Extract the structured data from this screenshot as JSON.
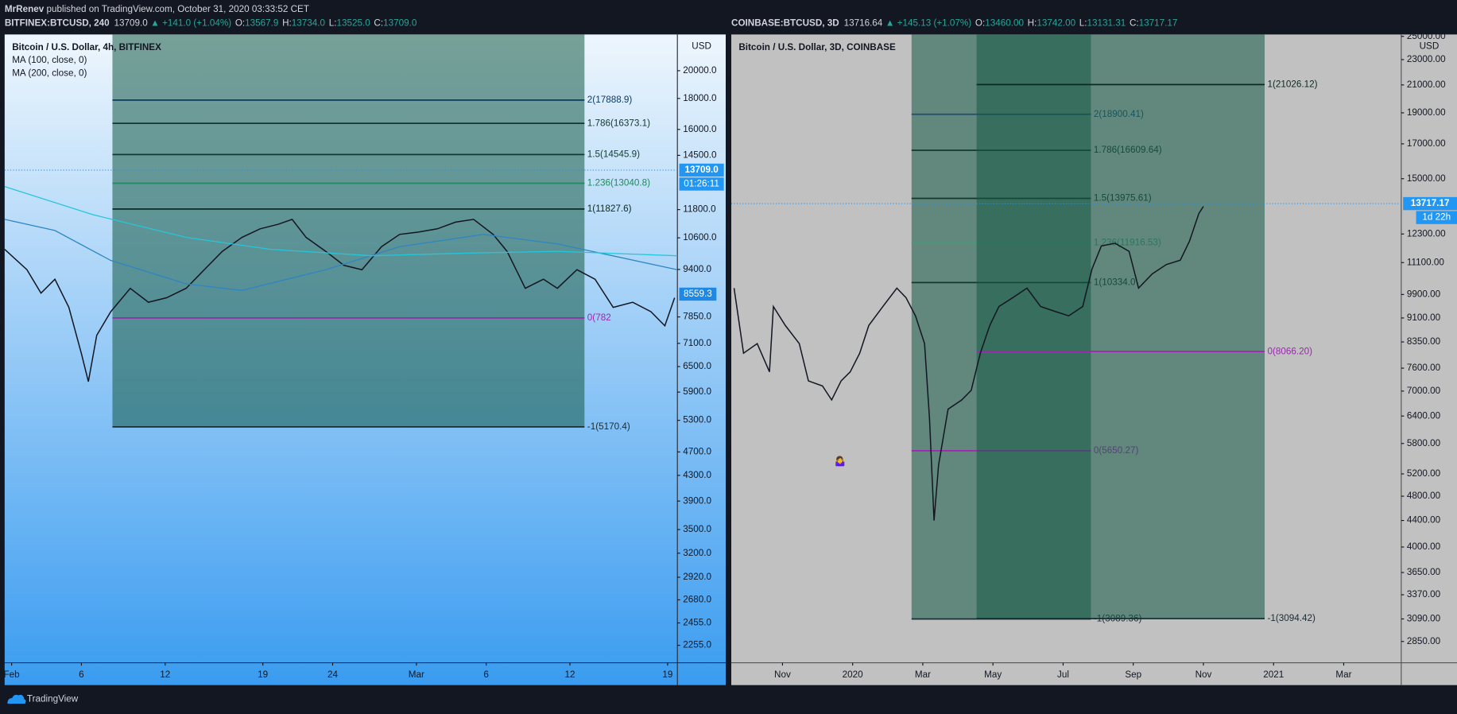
{
  "header": {
    "author": "MrRenev",
    "published": "published on TradingView.com, October 31, 2020 03:33:52 CET",
    "panels": [
      {
        "symbol": "BITFINEX:BTCUSD, 240",
        "price": "13709.0",
        "change": "▲ +141.0 (+1.04%)",
        "ohlc": [
          [
            "O:",
            "13567.9"
          ],
          [
            "H:",
            "13734.0"
          ],
          [
            "L:",
            "13525.0"
          ],
          [
            "C:",
            "13709.0"
          ]
        ]
      },
      {
        "symbol": "COINBASE:BTCUSD, 3D",
        "price": "13716.64",
        "change": "▲ +145.13 (+1.07%)",
        "ohlc": [
          [
            "O:",
            "13460.00"
          ],
          [
            "H:",
            "13742.00"
          ],
          [
            "L:",
            "13131.31"
          ],
          [
            "C:",
            "13717.17"
          ]
        ]
      }
    ]
  },
  "chart_data": [
    {
      "type": "line",
      "log_scale": true,
      "grid": false,
      "currency": "USD",
      "xlim": [
        31.5,
        79.7
      ],
      "xticks": [
        {
          "value": 32,
          "label": "Feb"
        },
        {
          "value": 37,
          "label": "6"
        },
        {
          "value": 43,
          "label": "12"
        },
        {
          "value": 50,
          "label": "19"
        },
        {
          "value": 55,
          "label": "24"
        },
        {
          "value": 61,
          "label": "Mar"
        },
        {
          "value": 66,
          "label": "6"
        },
        {
          "value": 72,
          "label": "12"
        },
        {
          "value": 79,
          "label": "19"
        }
      ],
      "ylim": [
        2110,
        22950
      ],
      "yticks": [
        {
          "value": 20000,
          "label": "20000.0"
        },
        {
          "value": 18000,
          "label": "18000.0"
        },
        {
          "value": 16000,
          "label": "16000.0"
        },
        {
          "value": 14500,
          "label": "14500.0"
        },
        {
          "value": 11800,
          "label": "11800.0"
        },
        {
          "value": 10600,
          "label": "10600.0"
        },
        {
          "value": 9400,
          "label": "9400.0"
        },
        {
          "value": 7850,
          "label": "7850.0"
        },
        {
          "value": 7100,
          "label": "7100.0"
        },
        {
          "value": 6500,
          "label": "6500.0"
        },
        {
          "value": 5900,
          "label": "5900.0"
        },
        {
          "value": 5300,
          "label": "5300.0"
        },
        {
          "value": 4700,
          "label": "4700.0"
        },
        {
          "value": 4300,
          "label": "4300.0"
        },
        {
          "value": 3900,
          "label": "3900.0"
        },
        {
          "value": 3500,
          "label": "3500.0"
        },
        {
          "value": 3200,
          "label": "3200.0"
        },
        {
          "value": 2920,
          "label": "2920.0"
        },
        {
          "value": 2680,
          "label": "2680.0"
        },
        {
          "value": 2455,
          "label": "2455.0"
        },
        {
          "value": 2255,
          "label": "2255.0"
        }
      ],
      "series": [
        {
          "name": "Bitcoin / U.S. Dollar, 4h, BITFINEX",
          "color": "#131722",
          "x": [
            31.5,
            33.1,
            34.1,
            35.1,
            36.1,
            37,
            37.5,
            38.1,
            39.1,
            40.5,
            41.8,
            43.1,
            44.5,
            45.8,
            47.1,
            48.5,
            49.8,
            51.1,
            52.1,
            53.1,
            54.5,
            55.8,
            57.1,
            58.5,
            59.8,
            61.1,
            62.5,
            63.8,
            65.1,
            66.5,
            67.5,
            68.8,
            70.1,
            71.1,
            72.5,
            73.8,
            75.1,
            76.5,
            77.8,
            78.8,
            79.5
          ],
          "values": [
            10150,
            9390,
            8590,
            9060,
            8140,
            6830,
            6140,
            7320,
            8010,
            8750,
            8300,
            8440,
            8750,
            9390,
            10070,
            10620,
            10970,
            11160,
            11370,
            10620,
            10070,
            9550,
            9390,
            10250,
            10740,
            10830,
            10970,
            11250,
            11370,
            10740,
            10070,
            8750,
            9060,
            8750,
            9390,
            9060,
            8140,
            8300,
            8010,
            7590,
            8440
          ]
        },
        {
          "name": "MA (100, close, 0)",
          "color": "#2e86c1",
          "x": [
            31.5,
            35.1,
            39.1,
            44.5,
            48.5,
            54.5,
            59.8,
            65.8,
            71.1,
            79.7
          ],
          "values": [
            11370,
            10900,
            9730,
            8900,
            8680,
            9390,
            10250,
            10740,
            10360,
            9390
          ]
        },
        {
          "name": "MA (200, close, 0)",
          "color": "#26c6da",
          "x": [
            31.5,
            37.8,
            44.5,
            50.5,
            57.8,
            64.5,
            71.1,
            79.7
          ],
          "values": [
            12880,
            11580,
            10620,
            10150,
            9900,
            10000,
            10070,
            9900
          ]
        }
      ],
      "last_price": {
        "value": 13709.0,
        "label": "13709.0"
      },
      "countdown": "01:26:11",
      "price_marker": {
        "value": 8559.3,
        "label": "8559.3"
      },
      "fib_sets": [
        {
          "levels": [
            {
              "label": "2(17888.9)",
              "value": 17888.9,
              "color": "#0d3b66"
            },
            {
              "label": "1.786(16373.1)",
              "value": 16373.1,
              "color": "#12372f"
            },
            {
              "label": "1.5(14545.9)",
              "value": 14545.9,
              "color": "#0f3f30"
            },
            {
              "label": "1.236(13040.8)",
              "value": 13040.8,
              "color": "#1f8a60"
            },
            {
              "label": "1(11827.6)",
              "value": 11827.6,
              "color": "#0b2a22"
            },
            {
              "label": "0(782",
              "value": 7820,
              "color": "#9c27b0"
            },
            {
              "label": "-1(5170.4)",
              "value": 5170.4,
              "color": "#1b2d33"
            }
          ]
        }
      ]
    },
    {
      "type": "line",
      "log_scale": true,
      "grid": false,
      "currency": "USD",
      "xlim": [
        -3.46,
        15.64
      ],
      "xticks": [
        {
          "value": -2,
          "label": "Nov"
        },
        {
          "value": 0,
          "label": "2020"
        },
        {
          "value": 2,
          "label": "Mar"
        },
        {
          "value": 4,
          "label": "May"
        },
        {
          "value": 6,
          "label": "Jul"
        },
        {
          "value": 8,
          "label": "Sep"
        },
        {
          "value": 10,
          "label": "Nov"
        },
        {
          "value": 12,
          "label": "2021"
        },
        {
          "value": 14,
          "label": "Mar"
        }
      ],
      "ylim": [
        2640,
        25170
      ],
      "yticks": [
        {
          "value": 25000,
          "label": "25000.00"
        },
        {
          "value": 23000,
          "label": "23000.00"
        },
        {
          "value": 21000,
          "label": "21000.00"
        },
        {
          "value": 19000,
          "label": "19000.00"
        },
        {
          "value": 17000,
          "label": "17000.00"
        },
        {
          "value": 15000,
          "label": "15000.00"
        },
        {
          "value": 12300,
          "label": "12300.00"
        },
        {
          "value": 11100,
          "label": "11100.00"
        },
        {
          "value": 9900,
          "label": "9900.00"
        },
        {
          "value": 9100,
          "label": "9100.00"
        },
        {
          "value": 8350,
          "label": "8350.00"
        },
        {
          "value": 7600,
          "label": "7600.00"
        },
        {
          "value": 7000,
          "label": "7000.00"
        },
        {
          "value": 6400,
          "label": "6400.00"
        },
        {
          "value": 5800,
          "label": "5800.00"
        },
        {
          "value": 5200,
          "label": "5200.00"
        },
        {
          "value": 4800,
          "label": "4800.00"
        },
        {
          "value": 4400,
          "label": "4400.00"
        },
        {
          "value": 4000,
          "label": "4000.00"
        },
        {
          "value": 3650,
          "label": "3650.00"
        },
        {
          "value": 3370,
          "label": "3370.00"
        },
        {
          "value": 3090,
          "label": "3090.00"
        },
        {
          "value": 2850,
          "label": "2850.00"
        }
      ],
      "series": [
        {
          "name": "Bitcoin / U.S. Dollar, 3D, COINBASE",
          "color": "#131722",
          "x": [
            -3.38,
            -3.11,
            -2.72,
            -2.37,
            -2.26,
            -1.92,
            -1.52,
            -1.26,
            -0.86,
            -0.6,
            -0.33,
            -0.07,
            0.2,
            0.46,
            0.86,
            1.26,
            1.52,
            1.79,
            2.05,
            2.19,
            2.32,
            2.45,
            2.72,
            3.11,
            3.38,
            3.64,
            3.91,
            4.17,
            4.57,
            4.97,
            5.36,
            5.76,
            6.16,
            6.56,
            6.82,
            7.09,
            7.48,
            7.88,
            8.15,
            8.54,
            8.94,
            9.34,
            9.6,
            9.87,
            10.0
          ],
          "values": [
            10130,
            8020,
            8300,
            7500,
            9480,
            8860,
            8300,
            7260,
            7130,
            6780,
            7260,
            7500,
            8020,
            8860,
            9480,
            10130,
            9790,
            9170,
            8300,
            6350,
            4400,
            5370,
            6560,
            6780,
            7020,
            8020,
            8860,
            9480,
            9790,
            10130,
            9480,
            9320,
            9170,
            9480,
            10840,
            11780,
            11900,
            11560,
            10130,
            10660,
            11020,
            11200,
            11980,
            13240,
            13580
          ]
        }
      ],
      "last_price": {
        "value": 13717.17,
        "label": "13717.17"
      },
      "countdown": "1d 22h",
      "annotation": "🤷‍♀️",
      "fib_sets": [
        {
          "levels": [
            {
              "label": "2(18900.41)",
              "value": 18900.41,
              "color": "#1f4e79"
            },
            {
              "label": "1.786(16609.64)",
              "value": 16609.64,
              "color": "#12372f"
            },
            {
              "label": "1.5(13975.61)",
              "value": 13975.61,
              "color": "#12372f"
            },
            {
              "label": "1.236(11916.53)",
              "value": 11916.53,
              "color": "#3f9e78"
            },
            {
              "label": "1(10334.0",
              "value": 10334.0,
              "color": "#12372f"
            },
            {
              "label": "0(5650.27)",
              "value": 5650.27,
              "color": "#9c27b0"
            },
            {
              "label": "-1(3089.36)",
              "value": 3089.36,
              "color": "#1b2d33"
            }
          ]
        },
        {
          "levels": [
            {
              "label": "1(21026.12)",
              "value": 21026.12,
              "color": "#0b2a22"
            },
            {
              "label": "0(8066.20)",
              "value": 8066.2,
              "color": "#9c27b0"
            },
            {
              "label": "-1(3094.42)",
              "value": 3094.42,
              "color": "#1b2d33"
            }
          ]
        }
      ]
    }
  ],
  "footer": {
    "brand": "TradingView"
  }
}
